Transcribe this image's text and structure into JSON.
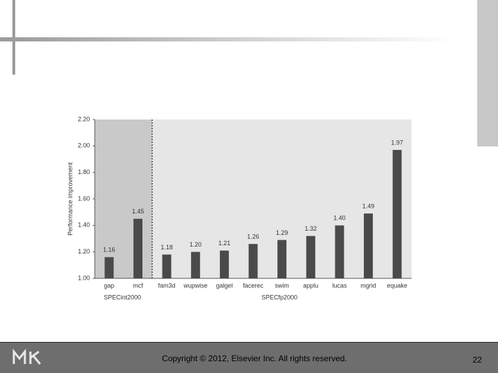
{
  "chart_data": {
    "type": "bar",
    "y_label": "Performance improvement",
    "categories": [
      "gap",
      "mcf",
      "fam3d",
      "wupwise",
      "galgel",
      "facerec",
      "swim",
      "applu",
      "lucas",
      "mgrid",
      "equake"
    ],
    "values": [
      1.16,
      1.45,
      1.18,
      1.2,
      1.21,
      1.26,
      1.29,
      1.32,
      1.4,
      1.49,
      1.97
    ],
    "value_labels": [
      "1.16",
      "1.45",
      "1.18",
      "1.20",
      "1.21",
      "1.26",
      "1.29",
      "1.32",
      "1.40",
      "1.49",
      "1.97"
    ],
    "group_labels": [
      "SPECint2000",
      "SPECfp2000"
    ],
    "color": "#4a4a4a",
    "ylim": [
      1.0,
      2.2
    ],
    "yticks": [
      {
        "value": 1.0,
        "label": "1.00"
      },
      {
        "value": 1.2,
        "label": "1.20"
      },
      {
        "value": 1.4,
        "label": "1.40"
      },
      {
        "value": 1.6,
        "label": "1.60"
      },
      {
        "value": 1.8,
        "label": "1.80"
      },
      {
        "value": 2.0,
        "label": "2.00"
      },
      {
        "value": 2.2,
        "label": "2.20"
      }
    ]
  },
  "footer": {
    "copyright": "Copyright © 2012, Elsevier Inc. All rights reserved.",
    "page": "22"
  }
}
